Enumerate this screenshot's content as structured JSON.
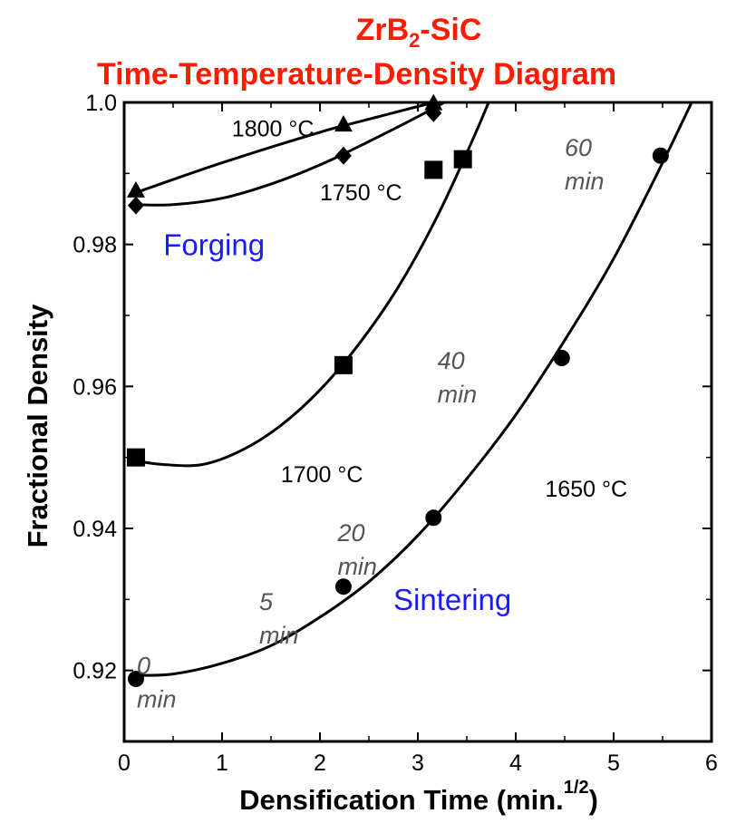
{
  "chart_data": {
    "type": "scatter",
    "title_main": "ZrB",
    "title_sub": "2",
    "title_suffix": "-SiC",
    "title_line2": "Time-Temperature-Density Diagram",
    "xlabel": "Densification Time (min.",
    "xlabel_sup": "1/2",
    "xlabel_close": ")",
    "ylabel": "Fractional Density",
    "xlim": [
      0,
      6
    ],
    "ylim": [
      0.91,
      1.0
    ],
    "xticks": [
      "0",
      "1",
      "2",
      "3",
      "4",
      "5",
      "6"
    ],
    "yticks": [
      "0.92",
      "0.94",
      "0.96",
      "0.98",
      "1.0"
    ],
    "series": [
      {
        "name": "1800 °C",
        "marker": "triangle",
        "x": [
          0.12,
          2.24,
          3.16
        ],
        "y": [
          0.9875,
          0.9968,
          0.9998
        ],
        "curve_x": [
          0.12,
          1.0,
          2.0,
          2.6,
          3.16,
          3.6
        ],
        "curve_y": [
          0.9873,
          0.9915,
          0.9958,
          0.998,
          1.0,
          1.0015
        ]
      },
      {
        "name": "1750 °C",
        "marker": "diamond",
        "x": [
          0.12,
          2.24,
          3.16
        ],
        "y": [
          0.9855,
          0.9925,
          0.9985
        ],
        "curve_x": [
          0.12,
          0.5,
          1.0,
          1.5,
          2.0,
          2.5,
          3.0,
          3.4,
          3.7
        ],
        "curve_y": [
          0.9856,
          0.9856,
          0.9865,
          0.9885,
          0.9912,
          0.9945,
          0.998,
          1.001,
          1.0035
        ]
      },
      {
        "name": "1700 °C",
        "marker": "square",
        "x": [
          0.12,
          2.24,
          3.16,
          3.46
        ],
        "y": [
          0.95,
          0.963,
          0.9905,
          0.992
        ],
        "curve_x": [
          0.12,
          0.4,
          0.8,
          1.2,
          1.6,
          2.0,
          2.4,
          2.8,
          3.2,
          3.6,
          3.9
        ],
        "curve_y": [
          0.9495,
          0.949,
          0.949,
          0.951,
          0.9545,
          0.9595,
          0.966,
          0.974,
          0.984,
          0.996,
          1.006
        ]
      },
      {
        "name": "1650 °C",
        "marker": "circle",
        "x": [
          0.12,
          2.24,
          3.16,
          4.47,
          5.48
        ],
        "y": [
          0.9188,
          0.9318,
          0.9415,
          0.964,
          0.9925
        ],
        "curve_x": [
          0.12,
          0.5,
          1.0,
          1.5,
          2.0,
          2.5,
          3.0,
          3.5,
          4.0,
          4.5,
          5.0,
          5.5,
          5.9
        ],
        "curve_y": [
          0.9193,
          0.9195,
          0.921,
          0.9235,
          0.9275,
          0.9325,
          0.939,
          0.947,
          0.956,
          0.9665,
          0.978,
          0.9915,
          1.003
        ]
      }
    ],
    "temperature_labels": [
      {
        "text": "1800 °C",
        "x": 1.1,
        "y": 0.9952
      },
      {
        "text": "1750 °C",
        "x": 2.0,
        "y": 0.9862
      },
      {
        "text": "1700 °C",
        "x": 1.6,
        "y": 0.9465
      },
      {
        "text": "1650 °C",
        "x": 4.3,
        "y": 0.9445
      }
    ],
    "time_labels": [
      {
        "line1": "0",
        "line2": "min",
        "x": 0.13,
        "y": 0.9195
      },
      {
        "line1": "5",
        "line2": "min",
        "x": 1.38,
        "y": 0.9285
      },
      {
        "line1": "20",
        "line2": "min",
        "x": 2.18,
        "y": 0.9382
      },
      {
        "line1": "40",
        "line2": "min",
        "x": 3.2,
        "y": 0.9625
      },
      {
        "line1": "60",
        "line2": "min",
        "x": 4.5,
        "y": 0.9925
      }
    ],
    "region_labels": [
      {
        "text": "Forging",
        "x": 0.4,
        "y": 0.9785
      },
      {
        "text": "Sintering",
        "x": 2.75,
        "y": 0.9285
      }
    ]
  }
}
